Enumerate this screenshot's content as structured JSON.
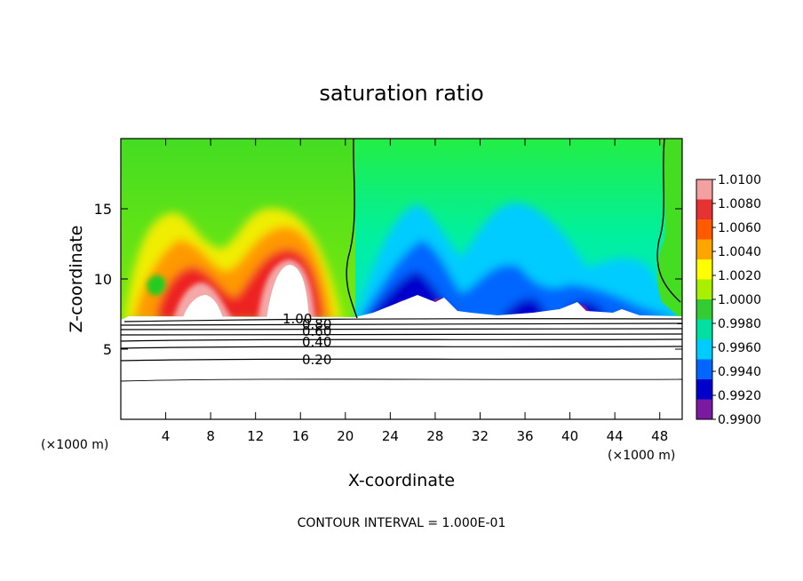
{
  "chart_data": {
    "type": "heatmap",
    "title": "saturation ratio",
    "xlabel": "X-coordinate",
    "ylabel": "Z-coordinate",
    "x_unit": "(×1000 m)",
    "footer": "CONTOUR INTERVAL = 1.000E-01",
    "xlim": [
      0,
      50
    ],
    "ylim": [
      0,
      20
    ],
    "x_ticks": [
      4,
      8,
      12,
      16,
      20,
      24,
      28,
      32,
      36,
      40,
      44,
      48
    ],
    "y_ticks": [
      5,
      10,
      15
    ],
    "x_tick_labels": [
      "4",
      "8",
      "12",
      "16",
      "20",
      "24",
      "28",
      "32",
      "36",
      "40",
      "44",
      "48"
    ],
    "y_tick_labels": [
      "5",
      "10",
      "15"
    ],
    "colorbar": {
      "min": 0.99,
      "max": 1.01,
      "labels": [
        "1.0100",
        "1.0080",
        "1.0060",
        "1.0040",
        "1.0020",
        "1.0000",
        "0.9980",
        "0.9960",
        "0.9940",
        "0.9920",
        "0.9900"
      ],
      "colors": [
        "#f4a0a0",
        "#e63232",
        "#ff5a00",
        "#ffa500",
        "#ffff00",
        "#aaee00",
        "#33cc33",
        "#00e0a0",
        "#00ccff",
        "#0066ff",
        "#0000cc",
        "#7a1aa0"
      ]
    },
    "contour_labels": [
      "1.00",
      "0.80",
      "0.60",
      "0.40",
      "0.20"
    ],
    "contour_levels": [
      1.0,
      0.8,
      0.6,
      0.4,
      0.2
    ],
    "contour_mean_z": [
      7.0,
      6.6,
      6.2,
      5.6,
      4.5
    ],
    "supersaturated_region_x": [
      0,
      20.5
    ],
    "subsaturated_region_x": [
      21,
      50
    ]
  }
}
